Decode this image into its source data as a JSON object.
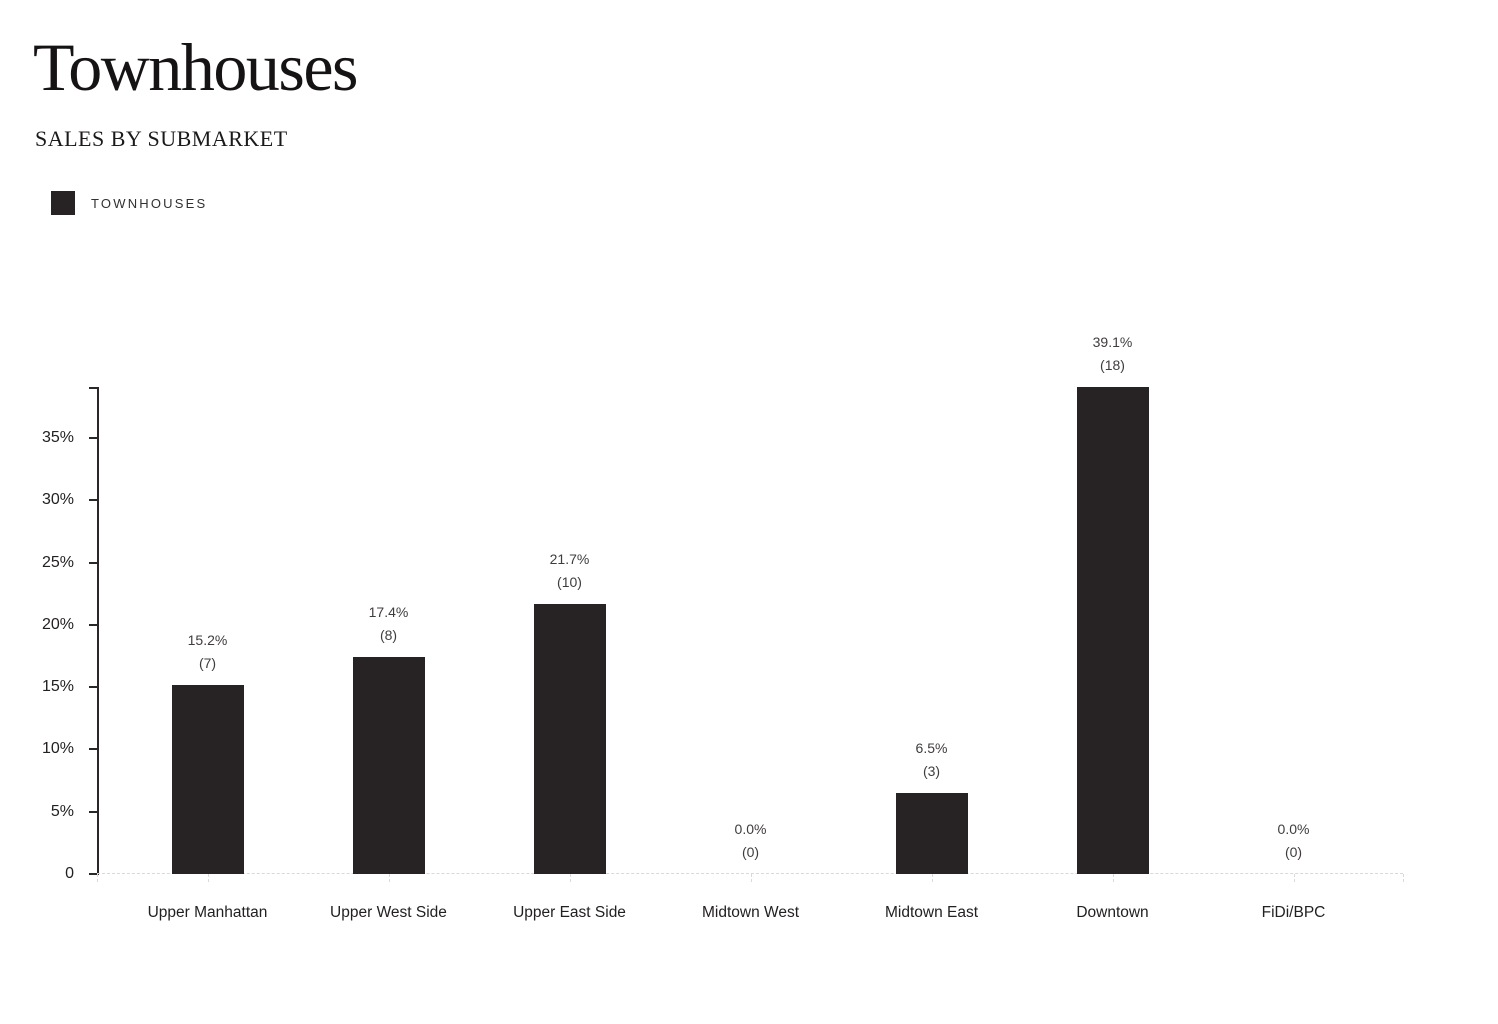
{
  "header": {
    "title": "Townhouses",
    "subtitle": "SALES BY SUBMARKET"
  },
  "legend": {
    "label": "TOWNHOUSES",
    "swatch_color": "#272324"
  },
  "chart_data": {
    "type": "bar",
    "title": "Townhouses",
    "subtitle": "SALES BY SUBMARKET",
    "categories": [
      "Upper Manhattan",
      "Upper West Side",
      "Upper East Side",
      "Midtown West",
      "Midtown East",
      "Downtown",
      "FiDi/BPC"
    ],
    "series": [
      {
        "name": "TOWNHOUSES",
        "values": [
          15.2,
          17.4,
          21.7,
          0.0,
          6.5,
          39.1,
          0.0
        ],
        "counts": [
          7,
          8,
          10,
          0,
          3,
          18,
          0
        ]
      }
    ],
    "value_labels": [
      "15.2%",
      "17.4%",
      "21.7%",
      "0.0%",
      "6.5%",
      "39.1%",
      "0.0%"
    ],
    "count_labels": [
      "(7)",
      "(8)",
      "(10)",
      "(0)",
      "(3)",
      "(18)",
      "(0)"
    ],
    "ylabel": "",
    "xlabel": "",
    "ylim": [
      0,
      39.1
    ],
    "yticks": [
      0,
      5,
      10,
      15,
      20,
      25,
      30,
      35
    ],
    "ytick_labels": [
      "0",
      "5%",
      "10%",
      "15%",
      "20%",
      "25%",
      "30%",
      "35%"
    ],
    "bar_color": "#272324",
    "grid": false,
    "legend_position": "top-left"
  }
}
